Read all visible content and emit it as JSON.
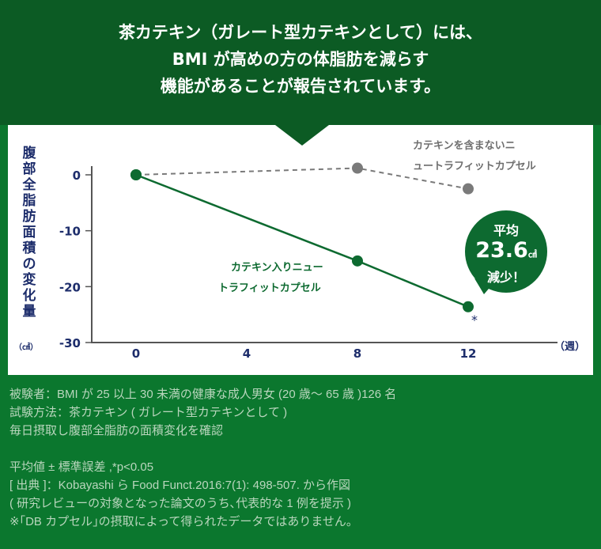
{
  "header": {
    "lines": [
      "茶カテキン（ガレート型カテキンとして）には、",
      "BMI が高めの方の体脂肪を減らす",
      "機能があることが報告されています。"
    ]
  },
  "chart_data": {
    "type": "line",
    "ylabel": "腹部全脂肪面積の変化量",
    "yunit": "（㎠）",
    "xunit": "（週）",
    "x": [
      0,
      8,
      12
    ],
    "xticks": [
      "0",
      "4",
      "8",
      "12"
    ],
    "yticks": [
      "0",
      "-10",
      "-20",
      "-30"
    ],
    "ylim": [
      -30,
      2
    ],
    "xlim": [
      -2,
      15
    ],
    "series": [
      {
        "name": "カテキン入りニュートラフィットカプセル",
        "label_lines": [
          "カテキン入りニュー",
          "トラフィットカプセル"
        ],
        "x": [
          0,
          8,
          12
        ],
        "values": [
          0,
          -15.4,
          -23.6
        ],
        "color": "#0d6a30",
        "style": "solid"
      },
      {
        "name": "カテキンを含まないニュートラフィットカプセル",
        "label_lines": [
          "カテキンを含まないニ",
          "ュートラフィットカプセル"
        ],
        "x": [
          0,
          8,
          12
        ],
        "values": [
          0,
          1.2,
          -2.5
        ],
        "color": "#7a7a7a",
        "style": "dashed"
      }
    ],
    "annotation": "*"
  },
  "bubble": {
    "top": "平均",
    "value": "23.6",
    "unit": "㎠",
    "bottom": "減少！"
  },
  "footer": [
    "被験者：BMI が 25 以上 30 未満の健康な成人男女 (20 歳～ 65 歳 )126 名",
    "試験方法：茶カテキン ( ガレート型カテキンとして )",
    "毎日摂取し腹部全脂肪の面積変化を確認",
    "",
    "平均値 ± 標準誤差 ,*p<0.05",
    "[ 出典 ]：Kobayashi ら Food Funct.2016:7(1): 498-507. から作図",
    "( 研究レビューの対象となった論文のうち､代表的な 1 例を提示 )",
    "※｢DB カプセル｣の摂取によって得られたデータではありません。"
  ]
}
